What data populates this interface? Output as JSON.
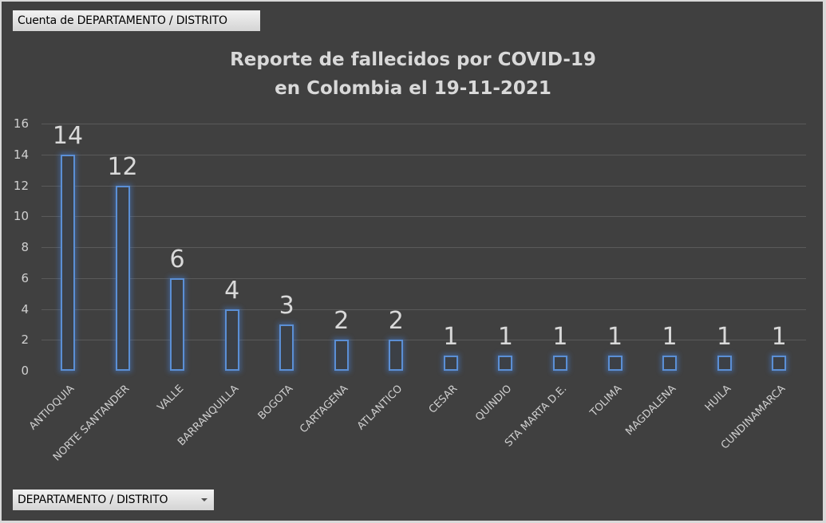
{
  "pivot": {
    "value_field_label": "Cuenta de DEPARTAMENTO / DISTRITO",
    "axis_field_label": "DEPARTAMENTO / DISTRITO",
    "axis_field_dropdown_icon": "dropdown-arrow-icon"
  },
  "colors": {
    "background": "#404040",
    "bar_outline": "#5b8fd5",
    "gridline": "#5a5a5a",
    "text": "#d9d9d9"
  },
  "chart_data": {
    "type": "bar",
    "title": "Reporte de fallecidos por COVID-19 en Colombia el 19-11-2021",
    "title_lines": [
      "Reporte de fallecidos por COVID-19",
      "en Colombia el 19-11-2021"
    ],
    "xlabel": "",
    "ylabel": "",
    "ylim": [
      0,
      16
    ],
    "yticks": [
      "0",
      "2",
      "4",
      "6",
      "8",
      "10",
      "12",
      "14",
      "16"
    ],
    "grid": true,
    "legend": "none",
    "categories": [
      "ANTIOQUIA",
      "NORTE SANTANDER",
      "VALLE",
      "BARRANQUILLA",
      "BOGOTA",
      "CARTAGENA",
      "ATLANTICO",
      "CESAR",
      "QUINDIO",
      "STA MARTA D.E.",
      "TOLIMA",
      "MAGDALENA",
      "HUILA",
      "CUNDINAMARCA"
    ],
    "values": [
      14,
      12,
      6,
      4,
      3,
      2,
      2,
      1,
      1,
      1,
      1,
      1,
      1,
      1
    ],
    "data_labels": [
      "14",
      "12",
      "6",
      "4",
      "3",
      "2",
      "2",
      "1",
      "1",
      "1",
      "1",
      "1",
      "1",
      "1"
    ]
  }
}
